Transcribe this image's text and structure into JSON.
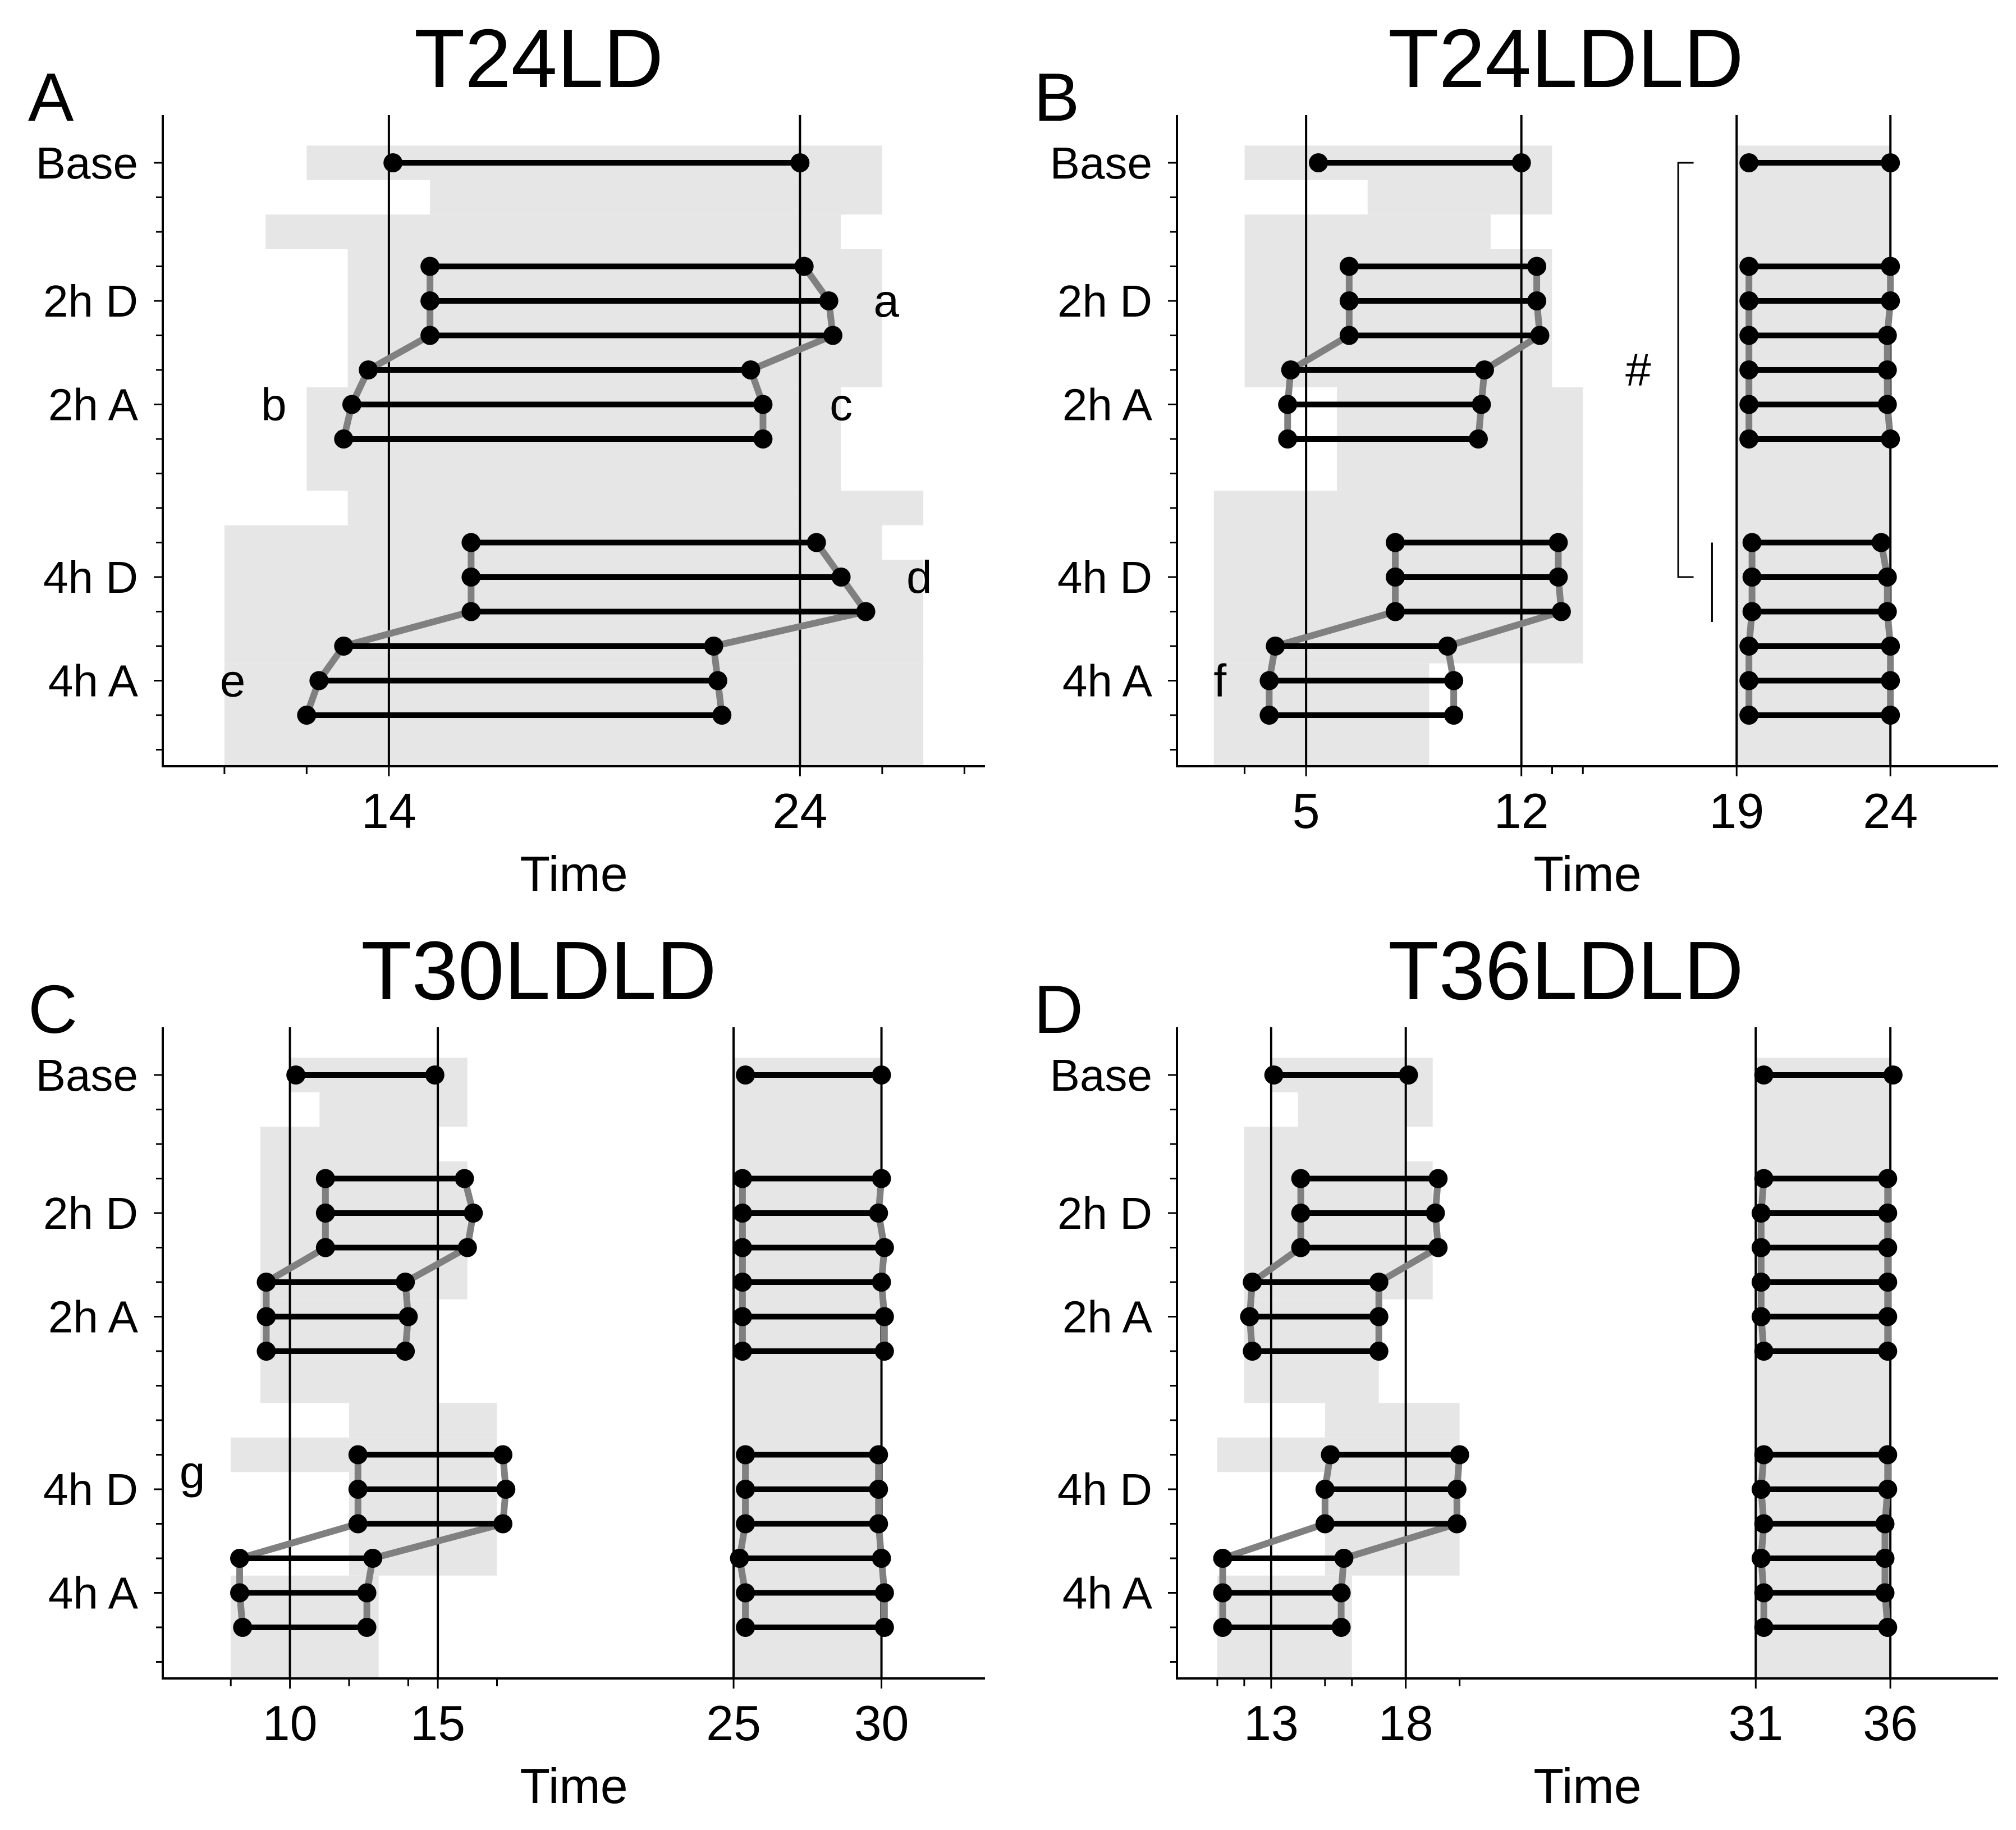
{
  "figure": {
    "row_labels": [
      "Base",
      "2h D",
      "2h A",
      "4h D",
      "4h A"
    ],
    "xlabel": "Time"
  },
  "chart_data": [
    {
      "type": "dumbbell",
      "panel_label": "A",
      "title": "T24LD",
      "xlabel": "Time",
      "xlim": [
        8.5,
        28.5
      ],
      "xticks": [
        14,
        24
      ],
      "minor_ticks": [
        10,
        12,
        26,
        28
      ],
      "vlines": [
        14,
        24
      ],
      "bands": [
        {
          "x0": 12,
          "x1": 26,
          "row0": -0.5,
          "row1": 0.5
        },
        {
          "x0": 15,
          "x1": 26,
          "row0": 0.5,
          "row1": 1.5
        },
        {
          "x0": 11,
          "x1": 25,
          "row0": 1.5,
          "row1": 2.5
        },
        {
          "x0": 13,
          "x1": 26,
          "row0": 2.5,
          "row1": 6.5
        },
        {
          "x0": 12,
          "x1": 25,
          "row0": 6.5,
          "row1": 9.5
        },
        {
          "x0": 13,
          "x1": 27,
          "row0": 9.5,
          "row1": 10.5
        },
        {
          "x0": 10,
          "x1": 26,
          "row0": 10.5,
          "row1": 11.5
        },
        {
          "x0": 10,
          "x1": 27,
          "row0": 11.5,
          "row1": 14.5
        },
        {
          "x0": 10,
          "x1": 27,
          "row0": 14.5,
          "row1": 17.5
        }
      ],
      "intervals": [
        {
          "row": 0,
          "onset": 14.1,
          "offset": 24.0
        },
        {
          "row": 3,
          "onset": 15.0,
          "offset": 24.1
        },
        {
          "row": 4,
          "onset": 15.0,
          "offset": 24.7
        },
        {
          "row": 5,
          "onset": 15.0,
          "offset": 24.8
        },
        {
          "row": 6,
          "onset": 13.5,
          "offset": 22.8
        },
        {
          "row": 7,
          "onset": 13.1,
          "offset": 23.1
        },
        {
          "row": 8,
          "onset": 12.9,
          "offset": 23.1
        },
        {
          "row": 11,
          "onset": 16.0,
          "offset": 24.4
        },
        {
          "row": 12,
          "onset": 16.0,
          "offset": 25.0
        },
        {
          "row": 13,
          "onset": 16.0,
          "offset": 25.6
        },
        {
          "row": 14,
          "onset": 12.9,
          "offset": 21.9
        },
        {
          "row": 15,
          "onset": 12.3,
          "offset": 22.0
        },
        {
          "row": 16,
          "onset": 12.0,
          "offset": 22.1
        }
      ],
      "annotations": [
        {
          "text": "a",
          "x": 26.1,
          "row": 4
        },
        {
          "text": "b",
          "x": 11.2,
          "row": 7
        },
        {
          "text": "c",
          "x": 25.0,
          "row": 7
        },
        {
          "text": "d",
          "x": 26.9,
          "row": 12
        },
        {
          "text": "e",
          "x": 10.2,
          "row": 15
        }
      ]
    },
    {
      "type": "dumbbell",
      "panel_label": "B",
      "title": "T24LDLD",
      "xlabel": "Time",
      "xlim": [
        0.8,
        27.5
      ],
      "xticks": [
        5,
        12,
        19,
        24
      ],
      "minor_ticks": [
        3,
        13,
        14
      ],
      "vlines": [
        5,
        12,
        19,
        24
      ],
      "bands": [
        {
          "x0": 3,
          "x1": 13,
          "row0": -0.5,
          "row1": 0.5
        },
        {
          "x0": 7,
          "x1": 13,
          "row0": 0.5,
          "row1": 1.5
        },
        {
          "x0": 3,
          "x1": 11,
          "row0": 1.5,
          "row1": 2.5
        },
        {
          "x0": 3,
          "x1": 13,
          "row0": 2.5,
          "row1": 6.5
        },
        {
          "x0": 6,
          "x1": 14,
          "row0": 6.5,
          "row1": 9.5
        },
        {
          "x0": 2,
          "x1": 14,
          "row0": 9.5,
          "row1": 10.5
        },
        {
          "x0": 2,
          "x1": 14,
          "row0": 10.5,
          "row1": 11.5
        },
        {
          "x0": 2,
          "x1": 14,
          "row0": 11.5,
          "row1": 14.5
        },
        {
          "x0": 2,
          "x1": 9,
          "row0": 14.5,
          "row1": 17.5
        },
        {
          "x0": 19,
          "x1": 24,
          "row0": -0.5,
          "row1": 17.5
        }
      ],
      "intervals": [
        {
          "row": 0,
          "onset": 5.4,
          "offset": 12.0
        },
        {
          "row": 0,
          "onset": 19.4,
          "offset": 24.0
        },
        {
          "row": 3,
          "onset": 6.4,
          "offset": 12.5
        },
        {
          "row": 4,
          "onset": 6.4,
          "offset": 12.5
        },
        {
          "row": 5,
          "onset": 6.4,
          "offset": 12.6
        },
        {
          "row": 6,
          "onset": 4.5,
          "offset": 10.8
        },
        {
          "row": 7,
          "onset": 4.4,
          "offset": 10.7
        },
        {
          "row": 8,
          "onset": 4.4,
          "offset": 10.6
        },
        {
          "row": 11,
          "onset": 7.9,
          "offset": 13.2
        },
        {
          "row": 12,
          "onset": 7.9,
          "offset": 13.2
        },
        {
          "row": 13,
          "onset": 7.9,
          "offset": 13.3
        },
        {
          "row": 14,
          "onset": 4.0,
          "offset": 9.6
        },
        {
          "row": 15,
          "onset": 3.8,
          "offset": 9.8
        },
        {
          "row": 16,
          "onset": 3.8,
          "offset": 9.8
        },
        {
          "row": 3,
          "onset": 19.4,
          "offset": 24.0
        },
        {
          "row": 4,
          "onset": 19.4,
          "offset": 24.0
        },
        {
          "row": 5,
          "onset": 19.4,
          "offset": 23.9
        },
        {
          "row": 6,
          "onset": 19.4,
          "offset": 23.9
        },
        {
          "row": 7,
          "onset": 19.4,
          "offset": 23.9
        },
        {
          "row": 8,
          "onset": 19.4,
          "offset": 24.0
        },
        {
          "row": 11,
          "onset": 19.5,
          "offset": 23.7
        },
        {
          "row": 12,
          "onset": 19.5,
          "offset": 23.9
        },
        {
          "row": 13,
          "onset": 19.5,
          "offset": 23.9
        },
        {
          "row": 14,
          "onset": 19.4,
          "offset": 24.0
        },
        {
          "row": 15,
          "onset": 19.4,
          "offset": 24.0
        },
        {
          "row": 16,
          "onset": 19.4,
          "offset": 24.0
        }
      ],
      "annotations": [
        {
          "text": "f",
          "x": 2.2,
          "row": 15
        },
        {
          "text": "#",
          "x": 15.8,
          "row": 6
        }
      ],
      "bracket": {
        "x": 17.1,
        "x_tip": 17.6,
        "row_top": 0,
        "row_bottom": 12,
        "second_line_x": 18.2,
        "second_line_rows": [
          11,
          13.3
        ]
      }
    },
    {
      "type": "dumbbell",
      "panel_label": "C",
      "title": "T30LDLD",
      "xlabel": "Time",
      "xlim": [
        5.7,
        33.5
      ],
      "xticks": [
        10,
        15,
        25,
        30
      ],
      "minor_ticks": [
        8,
        12,
        14,
        17
      ],
      "vlines": [
        10,
        15,
        25,
        30
      ],
      "bands": [
        {
          "x0": 10,
          "x1": 16,
          "row0": -0.5,
          "row1": 0.5
        },
        {
          "x0": 11,
          "x1": 16,
          "row0": 0.5,
          "row1": 1.5
        },
        {
          "x0": 9,
          "x1": 15,
          "row0": 1.5,
          "row1": 2.5
        },
        {
          "x0": 9,
          "x1": 16,
          "row0": 2.5,
          "row1": 6.5
        },
        {
          "x0": 9,
          "x1": 15,
          "row0": 6.5,
          "row1": 9.5
        },
        {
          "x0": 12,
          "x1": 17,
          "row0": 9.5,
          "row1": 10.5
        },
        {
          "x0": 8,
          "x1": 17,
          "row0": 10.5,
          "row1": 11.5
        },
        {
          "x0": 12,
          "x1": 17,
          "row0": 11.5,
          "row1": 14.5
        },
        {
          "x0": 8,
          "x1": 13,
          "row0": 14.5,
          "row1": 17.5
        },
        {
          "x0": 25,
          "x1": 30,
          "row0": -0.5,
          "row1": 17.5
        }
      ],
      "intervals": [
        {
          "row": 0,
          "onset": 10.2,
          "offset": 14.9
        },
        {
          "row": 0,
          "onset": 25.4,
          "offset": 30.0
        },
        {
          "row": 3,
          "onset": 11.2,
          "offset": 15.9
        },
        {
          "row": 4,
          "onset": 11.2,
          "offset": 16.2
        },
        {
          "row": 5,
          "onset": 11.2,
          "offset": 16.0
        },
        {
          "row": 6,
          "onset": 9.2,
          "offset": 13.9
        },
        {
          "row": 7,
          "onset": 9.2,
          "offset": 14.0
        },
        {
          "row": 8,
          "onset": 9.2,
          "offset": 13.9
        },
        {
          "row": 11,
          "onset": 12.3,
          "offset": 17.2
        },
        {
          "row": 12,
          "onset": 12.3,
          "offset": 17.3
        },
        {
          "row": 13,
          "onset": 12.3,
          "offset": 17.2
        },
        {
          "row": 14,
          "onset": 8.3,
          "offset": 12.8
        },
        {
          "row": 15,
          "onset": 8.3,
          "offset": 12.6
        },
        {
          "row": 16,
          "onset": 8.4,
          "offset": 12.6
        },
        {
          "row": 3,
          "onset": 25.3,
          "offset": 30.0
        },
        {
          "row": 4,
          "onset": 25.3,
          "offset": 29.9
        },
        {
          "row": 5,
          "onset": 25.3,
          "offset": 30.1
        },
        {
          "row": 6,
          "onset": 25.3,
          "offset": 30.0
        },
        {
          "row": 7,
          "onset": 25.3,
          "offset": 30.1
        },
        {
          "row": 8,
          "onset": 25.3,
          "offset": 30.1
        },
        {
          "row": 11,
          "onset": 25.4,
          "offset": 29.9
        },
        {
          "row": 12,
          "onset": 25.4,
          "offset": 29.9
        },
        {
          "row": 13,
          "onset": 25.4,
          "offset": 29.9
        },
        {
          "row": 14,
          "onset": 25.2,
          "offset": 30.0
        },
        {
          "row": 15,
          "onset": 25.4,
          "offset": 30.1
        },
        {
          "row": 16,
          "onset": 25.4,
          "offset": 30.1
        }
      ],
      "annotations": [
        {
          "text": "g",
          "x": 6.7,
          "row": 11.5
        }
      ]
    },
    {
      "type": "dumbbell",
      "panel_label": "D",
      "title": "T36LDLD",
      "xlabel": "Time",
      "xlim": [
        9.5,
        40.0
      ],
      "xticks": [
        13,
        18,
        31,
        36
      ],
      "minor_ticks": [
        11,
        12,
        15,
        16,
        20
      ],
      "vlines": [
        13,
        18,
        31,
        36
      ],
      "bands": [
        {
          "x0": 13,
          "x1": 19,
          "row0": -0.5,
          "row1": 0.5
        },
        {
          "x0": 14,
          "x1": 19,
          "row0": 0.5,
          "row1": 1.5
        },
        {
          "x0": 12,
          "x1": 18,
          "row0": 1.5,
          "row1": 2.5
        },
        {
          "x0": 12,
          "x1": 19,
          "row0": 2.5,
          "row1": 6.5
        },
        {
          "x0": 12,
          "x1": 17,
          "row0": 6.5,
          "row1": 9.5
        },
        {
          "x0": 15,
          "x1": 20,
          "row0": 9.5,
          "row1": 10.5
        },
        {
          "x0": 11,
          "x1": 20,
          "row0": 10.5,
          "row1": 11.5
        },
        {
          "x0": 15,
          "x1": 20,
          "row0": 11.5,
          "row1": 14.5
        },
        {
          "x0": 11,
          "x1": 16,
          "row0": 14.5,
          "row1": 17.5
        },
        {
          "x0": 31,
          "x1": 36,
          "row0": -0.5,
          "row1": 17.5
        }
      ],
      "intervals": [
        {
          "row": 0,
          "onset": 13.1,
          "offset": 18.1
        },
        {
          "row": 0,
          "onset": 31.3,
          "offset": 36.1
        },
        {
          "row": 3,
          "onset": 14.1,
          "offset": 19.2
        },
        {
          "row": 4,
          "onset": 14.1,
          "offset": 19.1
        },
        {
          "row": 5,
          "onset": 14.1,
          "offset": 19.2
        },
        {
          "row": 6,
          "onset": 12.3,
          "offset": 17.0
        },
        {
          "row": 7,
          "onset": 12.2,
          "offset": 17.0
        },
        {
          "row": 8,
          "onset": 12.3,
          "offset": 17.0
        },
        {
          "row": 11,
          "onset": 15.2,
          "offset": 20.0
        },
        {
          "row": 12,
          "onset": 15.0,
          "offset": 19.9
        },
        {
          "row": 13,
          "onset": 15.0,
          "offset": 19.9
        },
        {
          "row": 14,
          "onset": 11.2,
          "offset": 15.7
        },
        {
          "row": 15,
          "onset": 11.2,
          "offset": 15.6
        },
        {
          "row": 16,
          "onset": 11.2,
          "offset": 15.6
        },
        {
          "row": 3,
          "onset": 31.3,
          "offset": 35.9
        },
        {
          "row": 4,
          "onset": 31.2,
          "offset": 35.9
        },
        {
          "row": 5,
          "onset": 31.2,
          "offset": 35.9
        },
        {
          "row": 6,
          "onset": 31.2,
          "offset": 35.9
        },
        {
          "row": 7,
          "onset": 31.2,
          "offset": 35.9
        },
        {
          "row": 8,
          "onset": 31.3,
          "offset": 35.9
        },
        {
          "row": 11,
          "onset": 31.3,
          "offset": 35.9
        },
        {
          "row": 12,
          "onset": 31.2,
          "offset": 35.9
        },
        {
          "row": 13,
          "onset": 31.3,
          "offset": 35.8
        },
        {
          "row": 14,
          "onset": 31.2,
          "offset": 35.8
        },
        {
          "row": 15,
          "onset": 31.3,
          "offset": 35.8
        },
        {
          "row": 16,
          "onset": 31.3,
          "offset": 35.9
        }
      ],
      "annotations": []
    }
  ]
}
